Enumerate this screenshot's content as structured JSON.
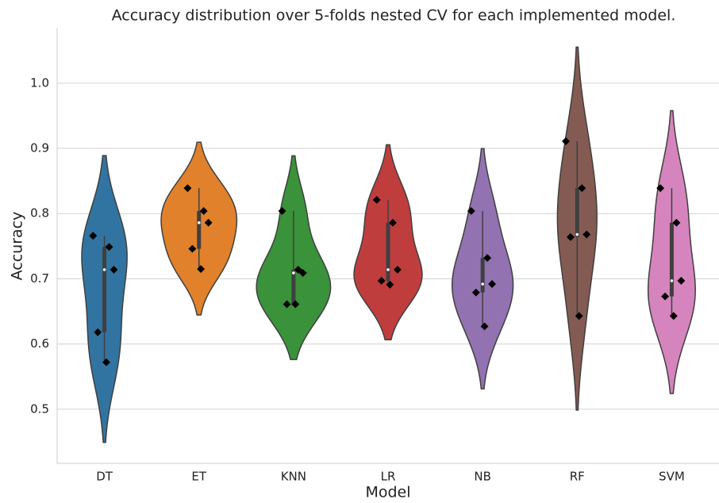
{
  "chart_data": {
    "type": "violin",
    "title": "Accuracy distribution over 5-folds nested CV for each implemented model.",
    "x_label": "Model",
    "y_label": "Accuracy",
    "categories": [
      "DT",
      "ET",
      "KNN",
      "LR",
      "NB",
      "RF",
      "SVM"
    ],
    "series": [
      {
        "name": "DT",
        "color": "#3274a1",
        "values": [
          0.766,
          0.749,
          0.714,
          0.618,
          0.572
        ]
      },
      {
        "name": "ET",
        "color": "#e1812c",
        "values": [
          0.839,
          0.804,
          0.786,
          0.746,
          0.715
        ]
      },
      {
        "name": "KNN",
        "color": "#3a923a",
        "values": [
          0.804,
          0.714,
          0.709,
          0.661,
          0.661
        ]
      },
      {
        "name": "LR",
        "color": "#c03d3e",
        "values": [
          0.821,
          0.786,
          0.714,
          0.697,
          0.691
        ]
      },
      {
        "name": "NB",
        "color": "#9372b2",
        "values": [
          0.804,
          0.732,
          0.692,
          0.679,
          0.627
        ]
      },
      {
        "name": "RF",
        "color": "#845b53",
        "values": [
          0.911,
          0.839,
          0.768,
          0.764,
          0.643
        ]
      },
      {
        "name": "SVM",
        "color": "#d684bd",
        "values": [
          0.839,
          0.786,
          0.697,
          0.673,
          0.643
        ]
      }
    ],
    "ylim": [
      0.417,
      1.085
    ],
    "yticks": [
      0.5,
      0.6,
      0.7,
      0.8,
      0.9,
      {
        "value": 1.0,
        "label": "1.0"
      }
    ],
    "grid": true
  }
}
